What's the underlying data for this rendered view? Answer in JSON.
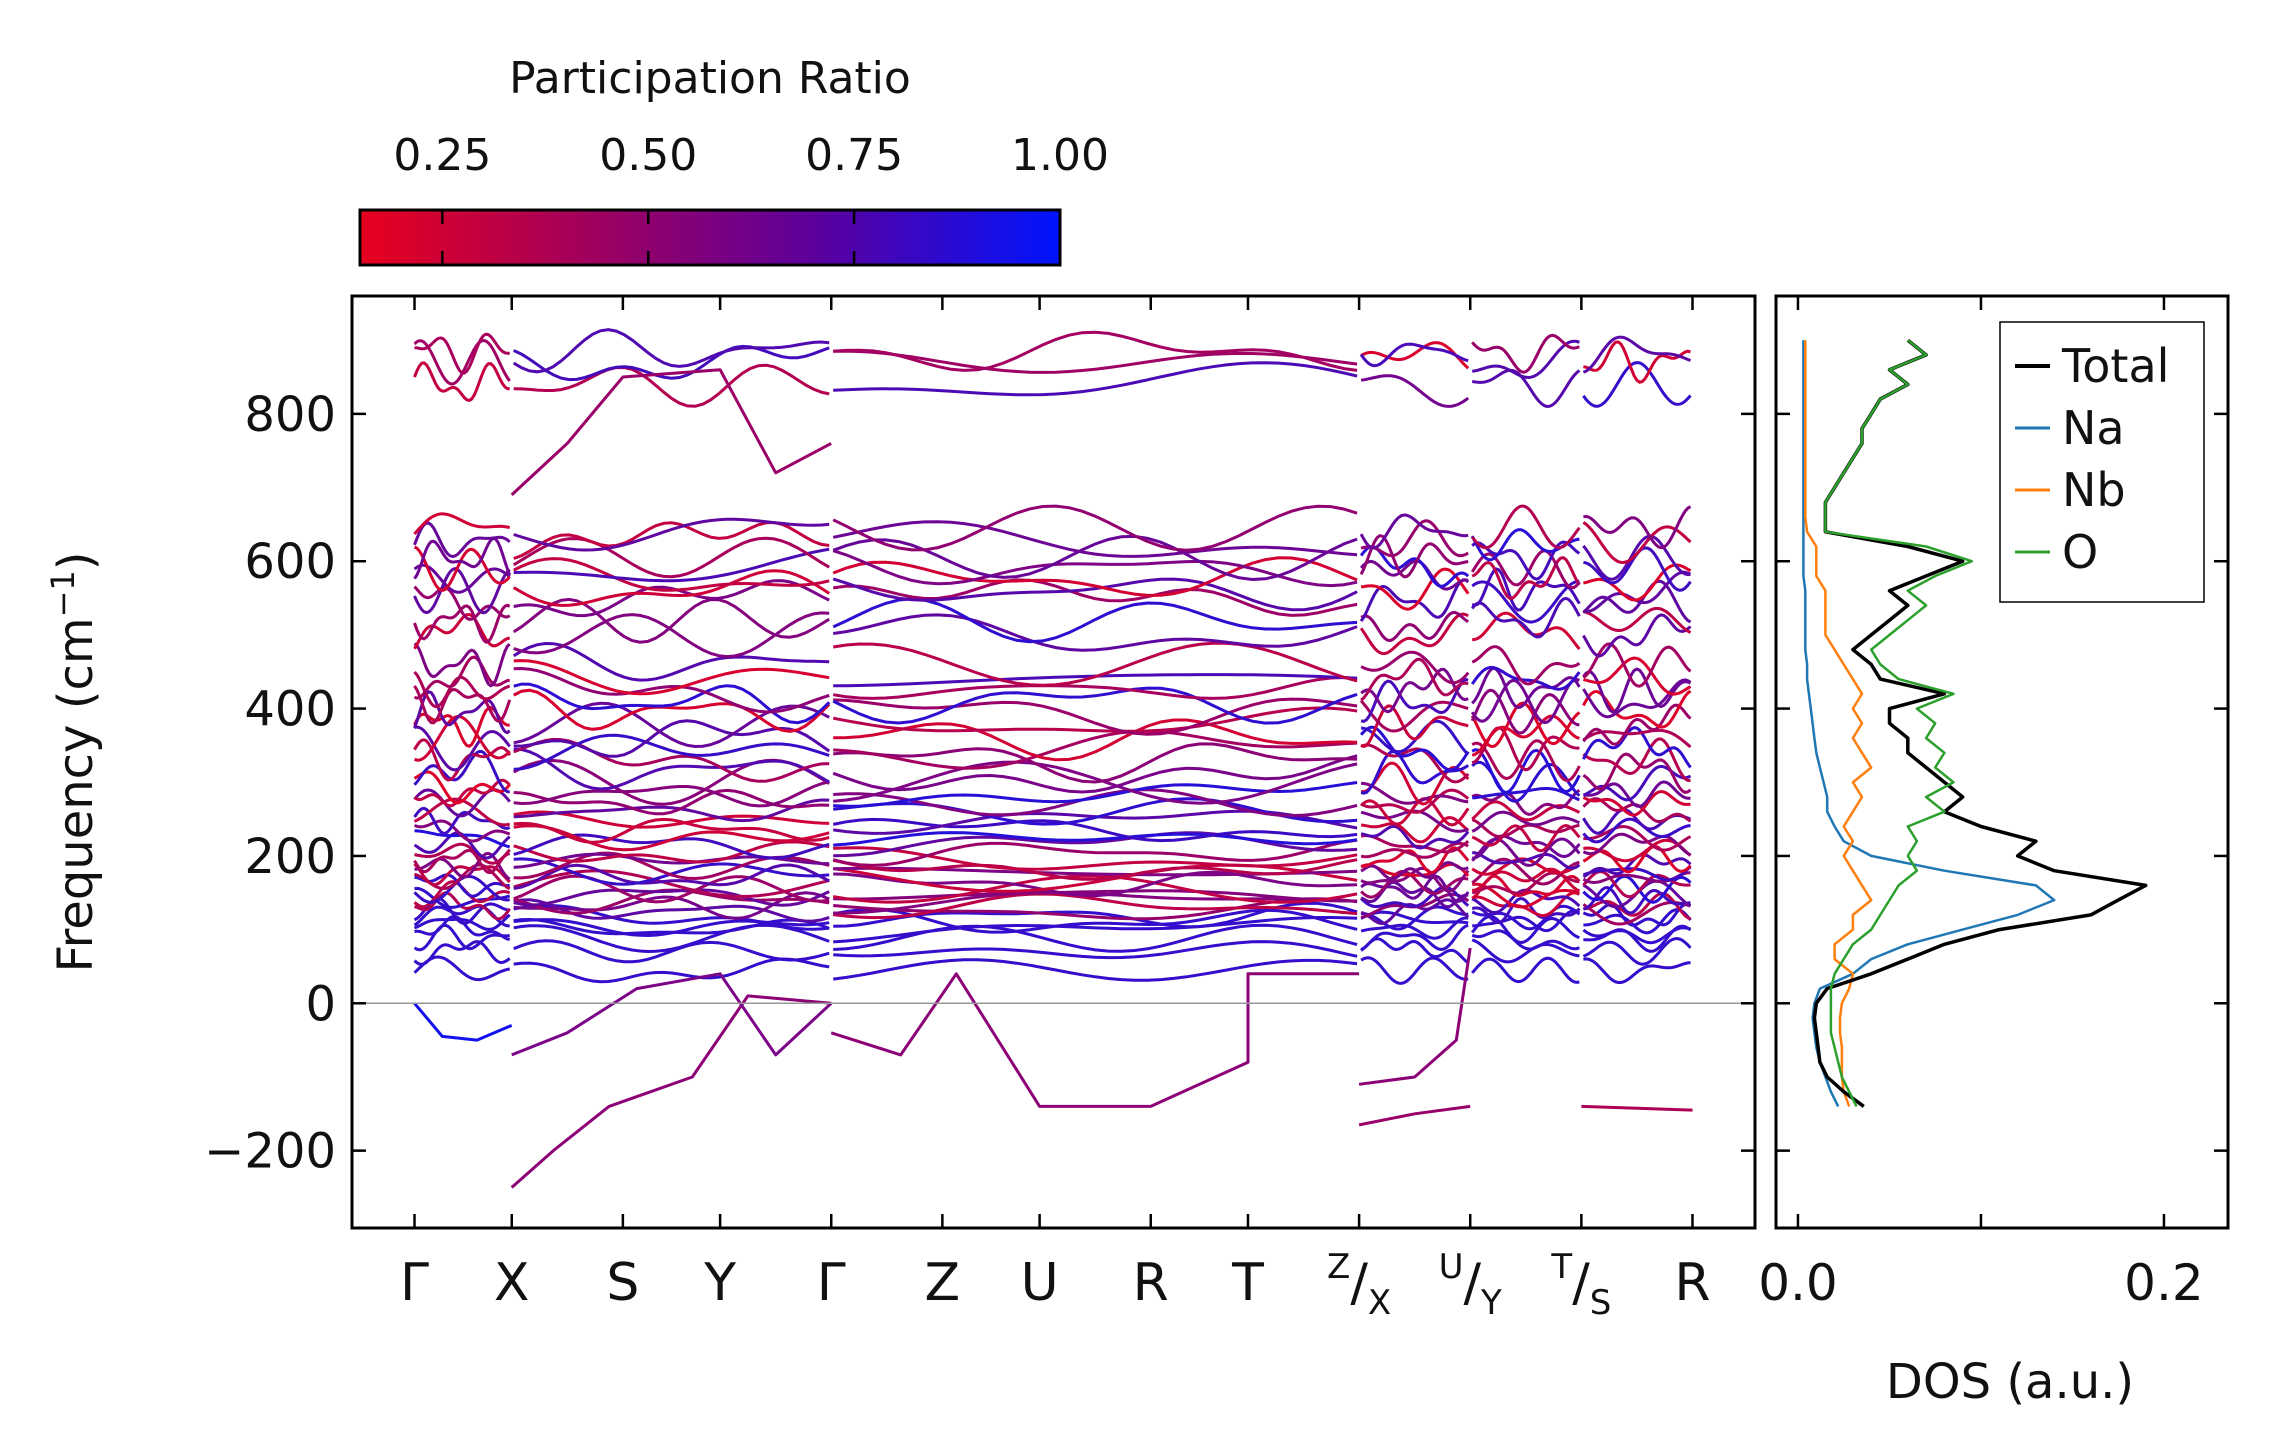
{
  "colors": {
    "cbar_low": "#e8001e",
    "cbar_high": "#0014ff",
    "total": "#000000",
    "na": "#1f77b4",
    "nb": "#ff7f0e",
    "o": "#2ca02c",
    "zero_line": "#999999"
  },
  "chart_data": [
    {
      "type": "line",
      "title": "",
      "ylabel": "Frequency (cm",
      "ylabel_sup": "−1",
      "ylabel_end": ")",
      "ylim": [
        -305,
        960
      ],
      "yticks": [
        800,
        600,
        400,
        200,
        0,
        -200
      ],
      "ytick_labels": [
        "800",
        "600",
        "400",
        "200",
        "0",
        "−200"
      ],
      "xticks": [
        0,
        0.7,
        1.5,
        2.2,
        3.0,
        3.8,
        4.5,
        5.3,
        6.0,
        6.8,
        7.6,
        8.4,
        9.2
      ],
      "xtick_labels": [
        {
          "main": "Γ"
        },
        {
          "main": "X"
        },
        {
          "main": "S"
        },
        {
          "main": "Y"
        },
        {
          "main": "Γ"
        },
        {
          "main": "Z"
        },
        {
          "main": "U"
        },
        {
          "main": "R"
        },
        {
          "main": "T"
        },
        {
          "sup": "Z",
          "main": "/",
          "sub": "X"
        },
        {
          "sup": "U",
          "main": "/",
          "sub": "Y"
        },
        {
          "sup": "T",
          "main": "/",
          "sub": "S"
        },
        {
          "main": "R"
        }
      ],
      "xlim": [
        -0.45,
        9.65
      ],
      "segments": [
        [
          0,
          0.7
        ],
        [
          0.7,
          3.0
        ],
        [
          3.0,
          6.8
        ],
        [
          6.8,
          7.6
        ],
        [
          7.6,
          8.4
        ],
        [
          8.4,
          9.2
        ]
      ],
      "color_scale": {
        "label": "Participation Ratio",
        "min": 0.15,
        "max": 1.0,
        "ticks": [
          0.25,
          0.5,
          0.75,
          1.0
        ],
        "tick_labels": [
          "0.25",
          "0.50",
          "0.75",
          "1.00"
        ]
      },
      "series_description": "phonon dispersion branches colored by participation ratio"
    },
    {
      "type": "line",
      "xlabel": "DOS (a.u.)",
      "xlim": [
        -0.012,
        0.235
      ],
      "xticks": [
        0.0,
        0.2
      ],
      "xtick_labels": [
        "0.0",
        "0.2"
      ],
      "ylim": [
        -305,
        960
      ],
      "legend": [
        {
          "name": "Total",
          "color_key": "total"
        },
        {
          "name": "Na",
          "color_key": "na"
        },
        {
          "name": "Nb",
          "color_key": "nb"
        },
        {
          "name": "O",
          "color_key": "o"
        }
      ],
      "legend_position": "top-right",
      "series": [
        {
          "name": "Total",
          "freq": [
            -140,
            -120,
            -100,
            -80,
            -60,
            -40,
            -20,
            0,
            20,
            40,
            60,
            80,
            100,
            120,
            140,
            160,
            180,
            200,
            220,
            240,
            260,
            280,
            300,
            320,
            340,
            360,
            380,
            400,
            420,
            440,
            460,
            480,
            500,
            520,
            540,
            560,
            580,
            600,
            620,
            640,
            660,
            680,
            700,
            720,
            740,
            760,
            780,
            800,
            820,
            840,
            860,
            880,
            900
          ],
          "values": [
            0.036,
            0.025,
            0.016,
            0.012,
            0.011,
            0.01,
            0.009,
            0.01,
            0.016,
            0.04,
            0.06,
            0.08,
            0.11,
            0.16,
            0.175,
            0.19,
            0.14,
            0.12,
            0.13,
            0.1,
            0.08,
            0.09,
            0.08,
            0.07,
            0.06,
            0.06,
            0.05,
            0.05,
            0.08,
            0.045,
            0.04,
            0.03,
            0.04,
            0.05,
            0.06,
            0.05,
            0.07,
            0.09,
            0.06,
            0.015,
            0.015,
            0.015,
            0.02,
            0.025,
            0.03,
            0.035,
            0.035,
            0.04,
            0.045,
            0.06,
            0.05,
            0.07,
            0.06
          ]
        },
        {
          "name": "Na",
          "freq": [
            -140,
            -120,
            -100,
            -80,
            -60,
            -40,
            -20,
            0,
            20,
            40,
            60,
            80,
            100,
            120,
            140,
            160,
            180,
            200,
            220,
            240,
            260,
            280,
            300,
            320,
            340,
            360,
            380,
            400,
            420,
            440,
            460,
            480,
            500,
            520,
            540,
            560,
            580,
            600,
            620,
            640,
            660,
            680,
            700,
            720,
            740,
            760,
            780,
            800,
            820,
            840,
            860,
            880,
            900
          ],
          "values": [
            0.022,
            0.018,
            0.015,
            0.012,
            0.01,
            0.009,
            0.008,
            0.009,
            0.012,
            0.03,
            0.04,
            0.06,
            0.09,
            0.12,
            0.14,
            0.13,
            0.08,
            0.04,
            0.025,
            0.02,
            0.016,
            0.016,
            0.014,
            0.012,
            0.01,
            0.009,
            0.008,
            0.007,
            0.006,
            0.005,
            0.005,
            0.004,
            0.004,
            0.004,
            0.004,
            0.004,
            0.003,
            0.003,
            0.003,
            0.003,
            0.003,
            0.003,
            0.003,
            0.003,
            0.003,
            0.003,
            0.003,
            0.003,
            0.003,
            0.003,
            0.003,
            0.003,
            0.003
          ]
        },
        {
          "name": "Nb",
          "freq": [
            -140,
            -120,
            -100,
            -80,
            -60,
            -40,
            -20,
            0,
            20,
            40,
            60,
            80,
            100,
            120,
            140,
            160,
            180,
            200,
            220,
            240,
            260,
            280,
            300,
            320,
            340,
            360,
            380,
            400,
            420,
            440,
            460,
            480,
            500,
            520,
            540,
            560,
            580,
            600,
            620,
            640,
            660,
            680,
            700,
            720,
            740,
            760,
            780,
            800,
            820,
            840,
            860,
            880,
            900
          ],
          "values": [
            0.028,
            0.025,
            0.024,
            0.024,
            0.024,
            0.023,
            0.023,
            0.024,
            0.028,
            0.03,
            0.02,
            0.02,
            0.03,
            0.03,
            0.04,
            0.035,
            0.03,
            0.025,
            0.03,
            0.025,
            0.03,
            0.035,
            0.03,
            0.04,
            0.035,
            0.03,
            0.035,
            0.03,
            0.035,
            0.03,
            0.025,
            0.02,
            0.015,
            0.015,
            0.015,
            0.015,
            0.01,
            0.01,
            0.01,
            0.005,
            0.004,
            0.004,
            0.004,
            0.004,
            0.004,
            0.004,
            0.004,
            0.004,
            0.004,
            0.004,
            0.004,
            0.004,
            0.004
          ]
        },
        {
          "name": "O",
          "freq": [
            -140,
            -120,
            -100,
            -80,
            -60,
            -40,
            -20,
            0,
            20,
            40,
            60,
            80,
            100,
            120,
            140,
            160,
            180,
            200,
            220,
            240,
            260,
            280,
            300,
            320,
            340,
            360,
            380,
            400,
            420,
            440,
            460,
            480,
            500,
            520,
            540,
            560,
            580,
            600,
            620,
            640,
            660,
            680,
            700,
            720,
            740,
            760,
            780,
            800,
            820,
            840,
            860,
            880,
            900
          ],
          "values": [
            0.032,
            0.028,
            0.024,
            0.022,
            0.02,
            0.018,
            0.018,
            0.018,
            0.018,
            0.02,
            0.025,
            0.03,
            0.04,
            0.045,
            0.05,
            0.055,
            0.065,
            0.06,
            0.065,
            0.06,
            0.08,
            0.07,
            0.085,
            0.075,
            0.08,
            0.07,
            0.075,
            0.065,
            0.085,
            0.055,
            0.045,
            0.04,
            0.05,
            0.06,
            0.07,
            0.06,
            0.075,
            0.095,
            0.07,
            0.015,
            0.015,
            0.015,
            0.02,
            0.025,
            0.03,
            0.035,
            0.035,
            0.04,
            0.045,
            0.06,
            0.05,
            0.07,
            0.06
          ]
        }
      ]
    }
  ]
}
